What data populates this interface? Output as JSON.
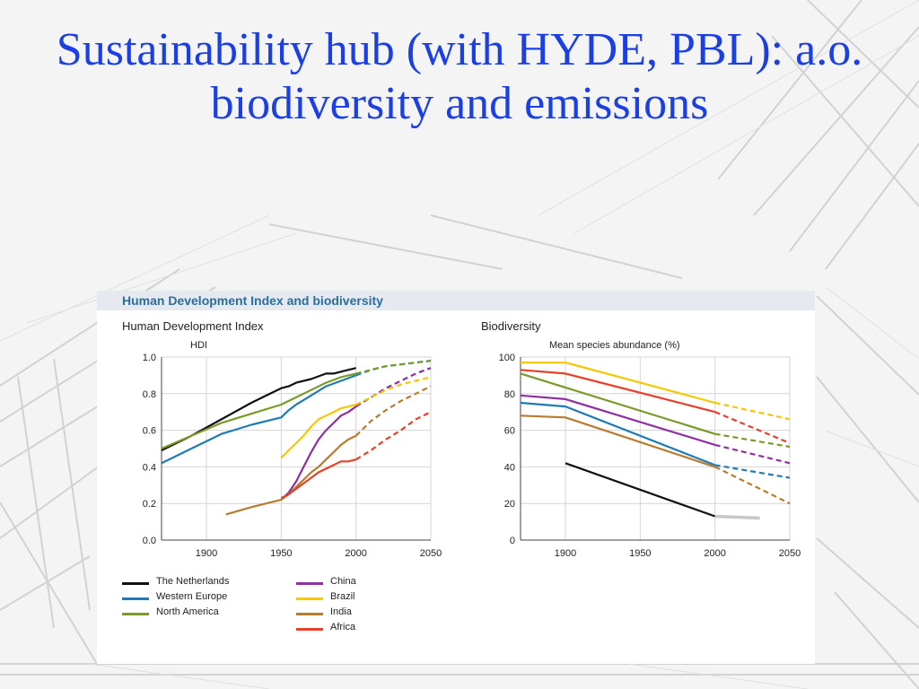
{
  "slide": {
    "title": "Sustainability hub (with HYDE, PBL): a.o. biodiversity and emissions"
  },
  "figure": {
    "title": "Human Development Index and biodiversity",
    "left_panel_title": "Human Development Index",
    "right_panel_title": "Biodiversity"
  },
  "colors": {
    "The Netherlands": "#111111",
    "Western Europe": "#1f7bb5",
    "North America": "#7a9a2a",
    "China": "#8e2fa2",
    "Brazil": "#f5c800",
    "India": "#b87c2e",
    "Africa": "#e5412a",
    "Netherlands projection": "#c8c8c8"
  },
  "legend": {
    "col1": [
      "The Netherlands",
      "Western Europe",
      "North America"
    ],
    "col2": [
      "China",
      "Brazil",
      "India",
      "Africa"
    ]
  },
  "chart_data": [
    {
      "type": "line",
      "title": "Human Development Index",
      "ylabel": "HDI",
      "xlim": [
        1870,
        2050
      ],
      "ylim": [
        0,
        1
      ],
      "xticks": [
        1900,
        1950,
        2000,
        2050
      ],
      "yticks": [
        "0.0",
        "0.2",
        "0.4",
        "0.6",
        "0.8",
        "1.0"
      ],
      "grid": true,
      "note": "dashed segments from 2000 onward are projections",
      "series": [
        {
          "name": "The Netherlands",
          "x": [
            1870,
            1890,
            1910,
            1930,
            1950,
            1955,
            1960,
            1970,
            1980,
            1985,
            1990,
            2000
          ],
          "y": [
            0.49,
            0.57,
            0.66,
            0.75,
            0.83,
            0.84,
            0.86,
            0.88,
            0.91,
            0.91,
            0.92,
            0.94
          ]
        },
        {
          "name": "Western Europe",
          "x": [
            1870,
            1890,
            1910,
            1930,
            1950,
            1955,
            1960,
            1970,
            1980,
            1990,
            2000
          ],
          "y": [
            0.42,
            0.5,
            0.58,
            0.63,
            0.67,
            0.71,
            0.74,
            0.79,
            0.84,
            0.87,
            0.9
          ],
          "projection": {
            "x": [
              2000,
              2010,
              2020,
              2030,
              2040,
              2050
            ],
            "y": [
              0.9,
              0.93,
              0.95,
              0.96,
              0.97,
              0.98
            ]
          }
        },
        {
          "name": "North America",
          "x": [
            1870,
            1890,
            1910,
            1930,
            1950,
            1960,
            1970,
            1980,
            1990,
            2000
          ],
          "y": [
            0.5,
            0.57,
            0.64,
            0.69,
            0.74,
            0.78,
            0.82,
            0.86,
            0.89,
            0.91
          ],
          "projection": {
            "x": [
              2000,
              2010,
              2020,
              2030,
              2040,
              2050
            ],
            "y": [
              0.91,
              0.93,
              0.95,
              0.96,
              0.97,
              0.98
            ]
          }
        },
        {
          "name": "China",
          "x": [
            1950,
            1955,
            1960,
            1965,
            1970,
            1975,
            1980,
            1985,
            1990,
            1995,
            2000
          ],
          "y": [
            0.22,
            0.26,
            0.32,
            0.4,
            0.48,
            0.55,
            0.6,
            0.64,
            0.68,
            0.7,
            0.73
          ],
          "projection": {
            "x": [
              2000,
              2010,
              2020,
              2030,
              2040,
              2050
            ],
            "y": [
              0.73,
              0.78,
              0.83,
              0.87,
              0.91,
              0.94
            ]
          }
        },
        {
          "name": "Brazil",
          "x": [
            1950,
            1955,
            1960,
            1965,
            1970,
            1975,
            1980,
            1985,
            1990,
            1995,
            2000
          ],
          "y": [
            0.45,
            0.49,
            0.53,
            0.57,
            0.62,
            0.66,
            0.68,
            0.7,
            0.72,
            0.73,
            0.74
          ],
          "projection": {
            "x": [
              2000,
              2010,
              2020,
              2030,
              2040,
              2050
            ],
            "y": [
              0.74,
              0.78,
              0.82,
              0.85,
              0.87,
              0.89
            ]
          }
        },
        {
          "name": "India",
          "x": [
            1913,
            1930,
            1950,
            1955,
            1960,
            1965,
            1970,
            1975,
            1980,
            1985,
            1990,
            1995,
            2000
          ],
          "y": [
            0.14,
            0.18,
            0.22,
            0.25,
            0.29,
            0.33,
            0.37,
            0.4,
            0.44,
            0.48,
            0.52,
            0.55,
            0.57
          ],
          "projection": {
            "x": [
              2000,
              2010,
              2020,
              2030,
              2040,
              2050
            ],
            "y": [
              0.57,
              0.65,
              0.71,
              0.76,
              0.8,
              0.84
            ]
          }
        },
        {
          "name": "Africa",
          "x": [
            1950,
            1955,
            1960,
            1965,
            1970,
            1975,
            1980,
            1985,
            1990,
            1995,
            2000
          ],
          "y": [
            0.23,
            0.25,
            0.28,
            0.31,
            0.34,
            0.37,
            0.39,
            0.41,
            0.43,
            0.43,
            0.44
          ],
          "projection": {
            "x": [
              2000,
              2010,
              2020,
              2030,
              2040,
              2050
            ],
            "y": [
              0.44,
              0.49,
              0.55,
              0.6,
              0.66,
              0.7
            ]
          }
        }
      ]
    },
    {
      "type": "line",
      "title": "Biodiversity",
      "ylabel": "Mean species abundance (%)",
      "xlim": [
        1870,
        2050
      ],
      "ylim": [
        0,
        100
      ],
      "xticks": [
        1900,
        1950,
        2000,
        2050
      ],
      "yticks": [
        "0",
        "20",
        "40",
        "60",
        "80",
        "100"
      ],
      "grid": true,
      "note": "dashed segments from 2000 onward are projections",
      "series": [
        {
          "name": "The Netherlands",
          "x": [
            1900,
            2000
          ],
          "y": [
            42,
            13
          ],
          "projection": {
            "x": [
              2000,
              2030
            ],
            "y": [
              13,
              12
            ],
            "color_key": "Netherlands projection"
          }
        },
        {
          "name": "Western Europe",
          "x": [
            1870,
            1900,
            2000
          ],
          "y": [
            75,
            73,
            41
          ],
          "projection": {
            "x": [
              2000,
              2050
            ],
            "y": [
              41,
              34
            ]
          }
        },
        {
          "name": "North America",
          "x": [
            1870,
            2000
          ],
          "y": [
            91,
            58
          ],
          "projection": {
            "x": [
              2000,
              2050
            ],
            "y": [
              58,
              51
            ]
          }
        },
        {
          "name": "China",
          "x": [
            1870,
            1900,
            2000
          ],
          "y": [
            79,
            77,
            52
          ],
          "projection": {
            "x": [
              2000,
              2050
            ],
            "y": [
              52,
              42
            ]
          }
        },
        {
          "name": "Brazil",
          "x": [
            1870,
            1900,
            2000
          ],
          "y": [
            97,
            97,
            75
          ],
          "projection": {
            "x": [
              2000,
              2050
            ],
            "y": [
              75,
              66
            ]
          }
        },
        {
          "name": "India",
          "x": [
            1870,
            1900,
            2000
          ],
          "y": [
            68,
            67,
            40
          ],
          "projection": {
            "x": [
              2000,
              2050
            ],
            "y": [
              40,
              20
            ]
          }
        },
        {
          "name": "Africa",
          "x": [
            1870,
            1900,
            2000
          ],
          "y": [
            93,
            91,
            70
          ],
          "projection": {
            "x": [
              2000,
              2050
            ],
            "y": [
              70,
              53
            ]
          }
        }
      ]
    }
  ]
}
